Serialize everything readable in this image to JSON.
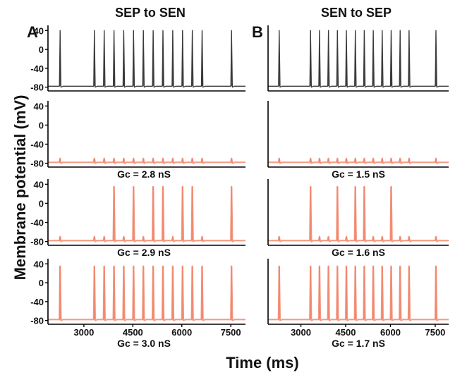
{
  "figure": {
    "columns": [
      {
        "letter": "A",
        "title": "SEP to SEN"
      },
      {
        "letter": "B",
        "title": "SEN to SEP"
      }
    ],
    "ylabel": "Membrane potential (mV)",
    "xlabel": "Time (ms)",
    "y_ticks": [
      "40",
      "0",
      "-40",
      "-80"
    ],
    "x_ticks": [
      "3000",
      "4500",
      "6000",
      "7500"
    ],
    "colors": {
      "driver_trace": "#3a3a3a",
      "coupled_trace": "#f07a5c",
      "axis": "#000000"
    }
  },
  "chart_data": [
    {
      "type": "line",
      "panel": "A1",
      "xlim": [
        1900,
        7950
      ],
      "ylim": [
        -85,
        45
      ],
      "series": [
        {
          "spike_times": [
            2250,
            3300,
            3600,
            3900,
            4200,
            4500,
            4800,
            5100,
            5400,
            5700,
            6000,
            6300,
            6600,
            7500
          ],
          "spike_peak": 40,
          "baseline": -78
        }
      ]
    },
    {
      "type": "line",
      "panel": "A2",
      "gc_label": "Gc = 2.8 nS",
      "xlim": [
        1900,
        7950
      ],
      "ylim": [
        -85,
        45
      ],
      "series": [
        {
          "spike_times": [
            2250,
            3300,
            3600,
            3900,
            4200,
            4500,
            4800,
            5100,
            5400,
            5700,
            6000,
            6300,
            6600,
            7500
          ],
          "spike_peak": -70,
          "baseline": -78
        }
      ]
    },
    {
      "type": "line",
      "panel": "A3",
      "gc_label": "Gc = 2.9 nS",
      "xlim": [
        1900,
        7950
      ],
      "ylim": [
        -85,
        45
      ],
      "series": [
        {
          "spike_times": [
            2250,
            3300,
            3600,
            3900,
            4200,
            4500,
            4800,
            5100,
            5400,
            5700,
            6000,
            6300,
            6600,
            7500
          ],
          "spike_peaks": [
            -70,
            -70,
            -70,
            35,
            -70,
            35,
            -70,
            35,
            35,
            -70,
            35,
            35,
            -70,
            35
          ],
          "baseline": -78
        }
      ]
    },
    {
      "type": "line",
      "panel": "A4",
      "gc_label": "Gc = 3.0 nS",
      "xlim": [
        1900,
        7950
      ],
      "ylim": [
        -85,
        45
      ],
      "series": [
        {
          "spike_times": [
            2250,
            3300,
            3600,
            3900,
            4200,
            4500,
            4800,
            5100,
            5400,
            5700,
            6000,
            6300,
            6600,
            7500
          ],
          "spike_peak": 35,
          "baseline": -78
        }
      ]
    },
    {
      "type": "line",
      "panel": "B1",
      "xlim": [
        1900,
        7950
      ],
      "ylim": [
        -85,
        45
      ],
      "series": [
        {
          "spike_times": [
            2250,
            3300,
            3600,
            3900,
            4200,
            4500,
            4800,
            5100,
            5400,
            5700,
            6000,
            6300,
            6600,
            7500
          ],
          "spike_peak": 40,
          "baseline": -78
        }
      ]
    },
    {
      "type": "line",
      "panel": "B2",
      "gc_label": "Gc = 1.5 nS",
      "xlim": [
        1900,
        7950
      ],
      "ylim": [
        -85,
        45
      ],
      "series": [
        {
          "spike_times": [
            2250,
            3300,
            3600,
            3900,
            4200,
            4500,
            4800,
            5100,
            5400,
            5700,
            6000,
            6300,
            6600,
            7500
          ],
          "spike_peak": -70,
          "baseline": -78
        }
      ]
    },
    {
      "type": "line",
      "panel": "B3",
      "gc_label": "Gc = 1.6 nS",
      "xlim": [
        1900,
        7950
      ],
      "ylim": [
        -85,
        45
      ],
      "series": [
        {
          "spike_times": [
            2250,
            3300,
            3600,
            3900,
            4200,
            4500,
            4800,
            5100,
            5400,
            5700,
            6000,
            6300,
            6600,
            7500
          ],
          "spike_peaks": [
            -70,
            35,
            -70,
            -70,
            35,
            -70,
            35,
            35,
            -70,
            -70,
            35,
            -70,
            -70,
            -70
          ],
          "baseline": -78
        }
      ]
    },
    {
      "type": "line",
      "panel": "B4",
      "gc_label": "Gc = 1.7 nS",
      "xlim": [
        1900,
        7950
      ],
      "ylim": [
        -85,
        45
      ],
      "series": [
        {
          "spike_times": [
            2250,
            3300,
            3600,
            3900,
            4200,
            4500,
            4800,
            5100,
            5400,
            5700,
            6000,
            6300,
            6600,
            7500
          ],
          "spike_peak": 35,
          "baseline": -78
        }
      ]
    }
  ]
}
